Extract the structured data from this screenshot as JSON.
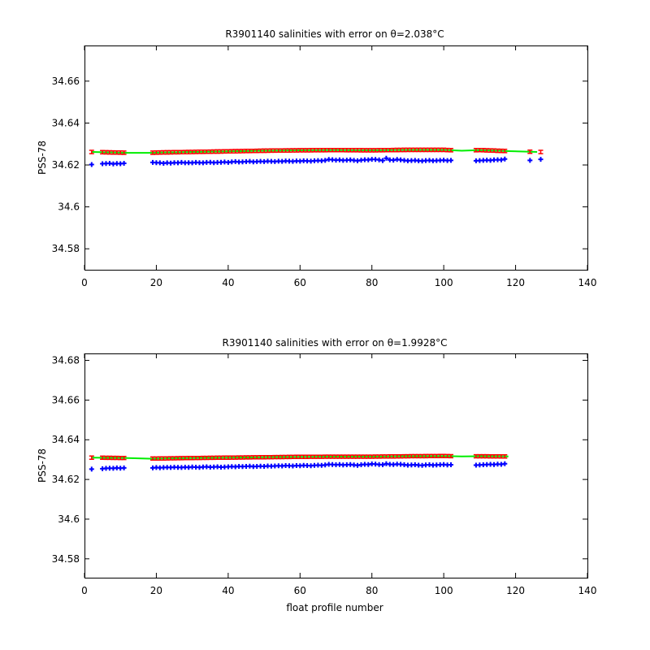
{
  "chart_data": [
    {
      "type": "scatter",
      "title": "R3901140 salinities with error on θ=2.038°C",
      "xlabel": "",
      "ylabel": "PSS-78",
      "xlim": [
        0,
        140
      ],
      "ylim": [
        34.57,
        34.677
      ],
      "xticks": [
        0,
        20,
        40,
        60,
        80,
        100,
        120,
        140
      ],
      "yticks": [
        34.58,
        34.6,
        34.62,
        34.64,
        34.66
      ],
      "x_tick_labels": [
        "0",
        "20",
        "40",
        "60",
        "80",
        "100",
        "120",
        "140"
      ],
      "y_tick_labels": [
        "34.58",
        "34.6",
        "34.62",
        "34.64",
        "34.66"
      ],
      "grid": false,
      "colors": {
        "float": "#0000ff",
        "mapped": "#00ee00",
        "error": "#ff0000"
      },
      "series": [
        {
          "role": "float",
          "x": [
            2,
            5,
            6,
            7,
            8,
            9,
            10,
            11,
            19,
            20,
            21,
            22,
            23,
            24,
            25,
            26,
            27,
            28,
            29,
            30,
            31,
            32,
            33,
            34,
            35,
            36,
            37,
            38,
            39,
            40,
            41,
            42,
            43,
            44,
            45,
            46,
            47,
            48,
            49,
            50,
            51,
            52,
            53,
            54,
            55,
            56,
            57,
            58,
            59,
            60,
            61,
            62,
            63,
            64,
            65,
            66,
            67,
            68,
            69,
            70,
            71,
            72,
            73,
            74,
            75,
            76,
            77,
            78,
            79,
            80,
            81,
            82,
            83,
            84,
            85,
            86,
            87,
            88,
            89,
            90,
            91,
            92,
            93,
            94,
            95,
            96,
            97,
            98,
            99,
            100,
            101,
            102,
            109,
            110,
            111,
            112,
            113,
            114,
            115,
            116,
            117,
            124,
            127
          ],
          "y": [
            34.6202,
            34.6206,
            34.6207,
            34.6208,
            34.6205,
            34.6207,
            34.6206,
            34.6208,
            34.6212,
            34.6211,
            34.621,
            34.6208,
            34.621,
            34.6209,
            34.6211,
            34.621,
            34.6212,
            34.621,
            34.6211,
            34.621,
            34.6212,
            34.6211,
            34.621,
            34.6212,
            34.6213,
            34.6211,
            34.6212,
            34.6213,
            34.6214,
            34.6212,
            34.6215,
            34.6216,
            34.6214,
            34.6215,
            34.6216,
            34.6217,
            34.6215,
            34.6216,
            34.6217,
            34.6216,
            34.6218,
            34.6217,
            34.6216,
            34.6218,
            34.6217,
            34.6219,
            34.6218,
            34.6217,
            34.6219,
            34.6218,
            34.622,
            34.6219,
            34.6218,
            34.622,
            34.6221,
            34.622,
            34.6222,
            34.6226,
            34.6225,
            34.6223,
            34.6224,
            34.6222,
            34.6223,
            34.6224,
            34.6222,
            34.622,
            34.6223,
            34.6225,
            34.6224,
            34.6227,
            34.6226,
            34.6224,
            34.6221,
            34.6232,
            34.6224,
            34.6223,
            34.6226,
            34.6224,
            34.6222,
            34.622,
            34.6221,
            34.6222,
            34.622,
            34.6219,
            34.6221,
            34.6222,
            34.622,
            34.6221,
            34.6222,
            34.6223,
            34.6221,
            34.6222,
            34.622,
            34.6221,
            34.6222,
            34.6223,
            34.6222,
            34.6224,
            34.6225,
            34.6224,
            34.6228,
            34.6222,
            34.6227
          ]
        },
        {
          "role": "mapped",
          "x": [
            2,
            12,
            18,
            22,
            30,
            40,
            50,
            60,
            70,
            80,
            90,
            100,
            105,
            110,
            118,
            126
          ],
          "y": [
            34.6262,
            34.6258,
            34.6258,
            34.626,
            34.6262,
            34.6265,
            34.6268,
            34.627,
            34.6271,
            34.627,
            34.6272,
            34.6272,
            34.6268,
            34.6271,
            34.6266,
            34.6262
          ]
        }
      ]
    },
    {
      "type": "scatter",
      "title": "R3901140 salinities with error on θ=1.9928°C",
      "xlabel": "float profile number",
      "ylabel": "PSS-78",
      "xlim": [
        0,
        140
      ],
      "ylim": [
        34.5705,
        34.6835
      ],
      "xticks": [
        0,
        20,
        40,
        60,
        80,
        100,
        120,
        140
      ],
      "yticks": [
        34.58,
        34.6,
        34.62,
        34.64,
        34.66,
        34.68
      ],
      "x_tick_labels": [
        "0",
        "20",
        "40",
        "60",
        "80",
        "100",
        "120",
        "140"
      ],
      "y_tick_labels": [
        "34.58",
        "34.6",
        "34.62",
        "34.64",
        "34.66",
        "34.68"
      ],
      "grid": false,
      "colors": {
        "float": "#0000ff",
        "mapped": "#00ee00",
        "error": "#ff0000"
      },
      "series": [
        {
          "role": "float",
          "x": [
            2,
            5,
            6,
            7,
            8,
            9,
            10,
            11,
            19,
            20,
            21,
            22,
            23,
            24,
            25,
            26,
            27,
            28,
            29,
            30,
            31,
            32,
            33,
            34,
            35,
            36,
            37,
            38,
            39,
            40,
            41,
            42,
            43,
            44,
            45,
            46,
            47,
            48,
            49,
            50,
            51,
            52,
            53,
            54,
            55,
            56,
            57,
            58,
            59,
            60,
            61,
            62,
            63,
            64,
            65,
            66,
            67,
            68,
            69,
            70,
            71,
            72,
            73,
            74,
            75,
            76,
            77,
            78,
            79,
            80,
            81,
            82,
            83,
            84,
            85,
            86,
            87,
            88,
            89,
            90,
            91,
            92,
            93,
            94,
            95,
            96,
            97,
            98,
            99,
            100,
            101,
            102,
            109,
            110,
            111,
            112,
            113,
            114,
            115,
            116,
            117
          ],
          "y": [
            34.6252,
            34.6254,
            34.6256,
            34.6257,
            34.6256,
            34.6258,
            34.6257,
            34.6258,
            34.6258,
            34.626,
            34.6259,
            34.626,
            34.6261,
            34.626,
            34.6262,
            34.6261,
            34.626,
            34.6262,
            34.6261,
            34.6263,
            34.6262,
            34.6261,
            34.6263,
            34.6264,
            34.6262,
            34.6263,
            34.6264,
            34.6262,
            34.6263,
            34.6264,
            34.6265,
            34.6264,
            34.6266,
            34.6265,
            34.6266,
            34.6267,
            34.6265,
            34.6266,
            34.6267,
            34.6266,
            34.6268,
            34.6267,
            34.6268,
            34.6269,
            34.6268,
            34.627,
            34.6269,
            34.6268,
            34.627,
            34.6269,
            34.6271,
            34.627,
            34.6269,
            34.6271,
            34.6272,
            34.6271,
            34.6273,
            34.6276,
            34.6275,
            34.6274,
            34.6275,
            34.6273,
            34.6274,
            34.6275,
            34.6273,
            34.6271,
            34.6274,
            34.6276,
            34.6275,
            34.6278,
            34.6277,
            34.6275,
            34.6274,
            34.6279,
            34.6276,
            34.6275,
            34.6277,
            34.6276,
            34.6274,
            34.6272,
            34.6273,
            34.6274,
            34.6272,
            34.6271,
            34.6273,
            34.6274,
            34.6272,
            34.6273,
            34.6274,
            34.6275,
            34.6273,
            34.6274,
            34.6272,
            34.6273,
            34.6274,
            34.6275,
            34.6276,
            34.6275,
            34.6277,
            34.6276,
            34.6279
          ]
        },
        {
          "role": "mapped",
          "x": [
            2,
            12,
            18,
            22,
            30,
            40,
            50,
            60,
            70,
            80,
            90,
            100,
            105,
            110,
            118
          ],
          "y": [
            34.631,
            34.6308,
            34.6305,
            34.6306,
            34.6308,
            34.631,
            34.6312,
            34.6314,
            34.6315,
            34.6315,
            34.6317,
            34.6318,
            34.6316,
            34.6317,
            34.6316
          ]
        }
      ]
    }
  ]
}
